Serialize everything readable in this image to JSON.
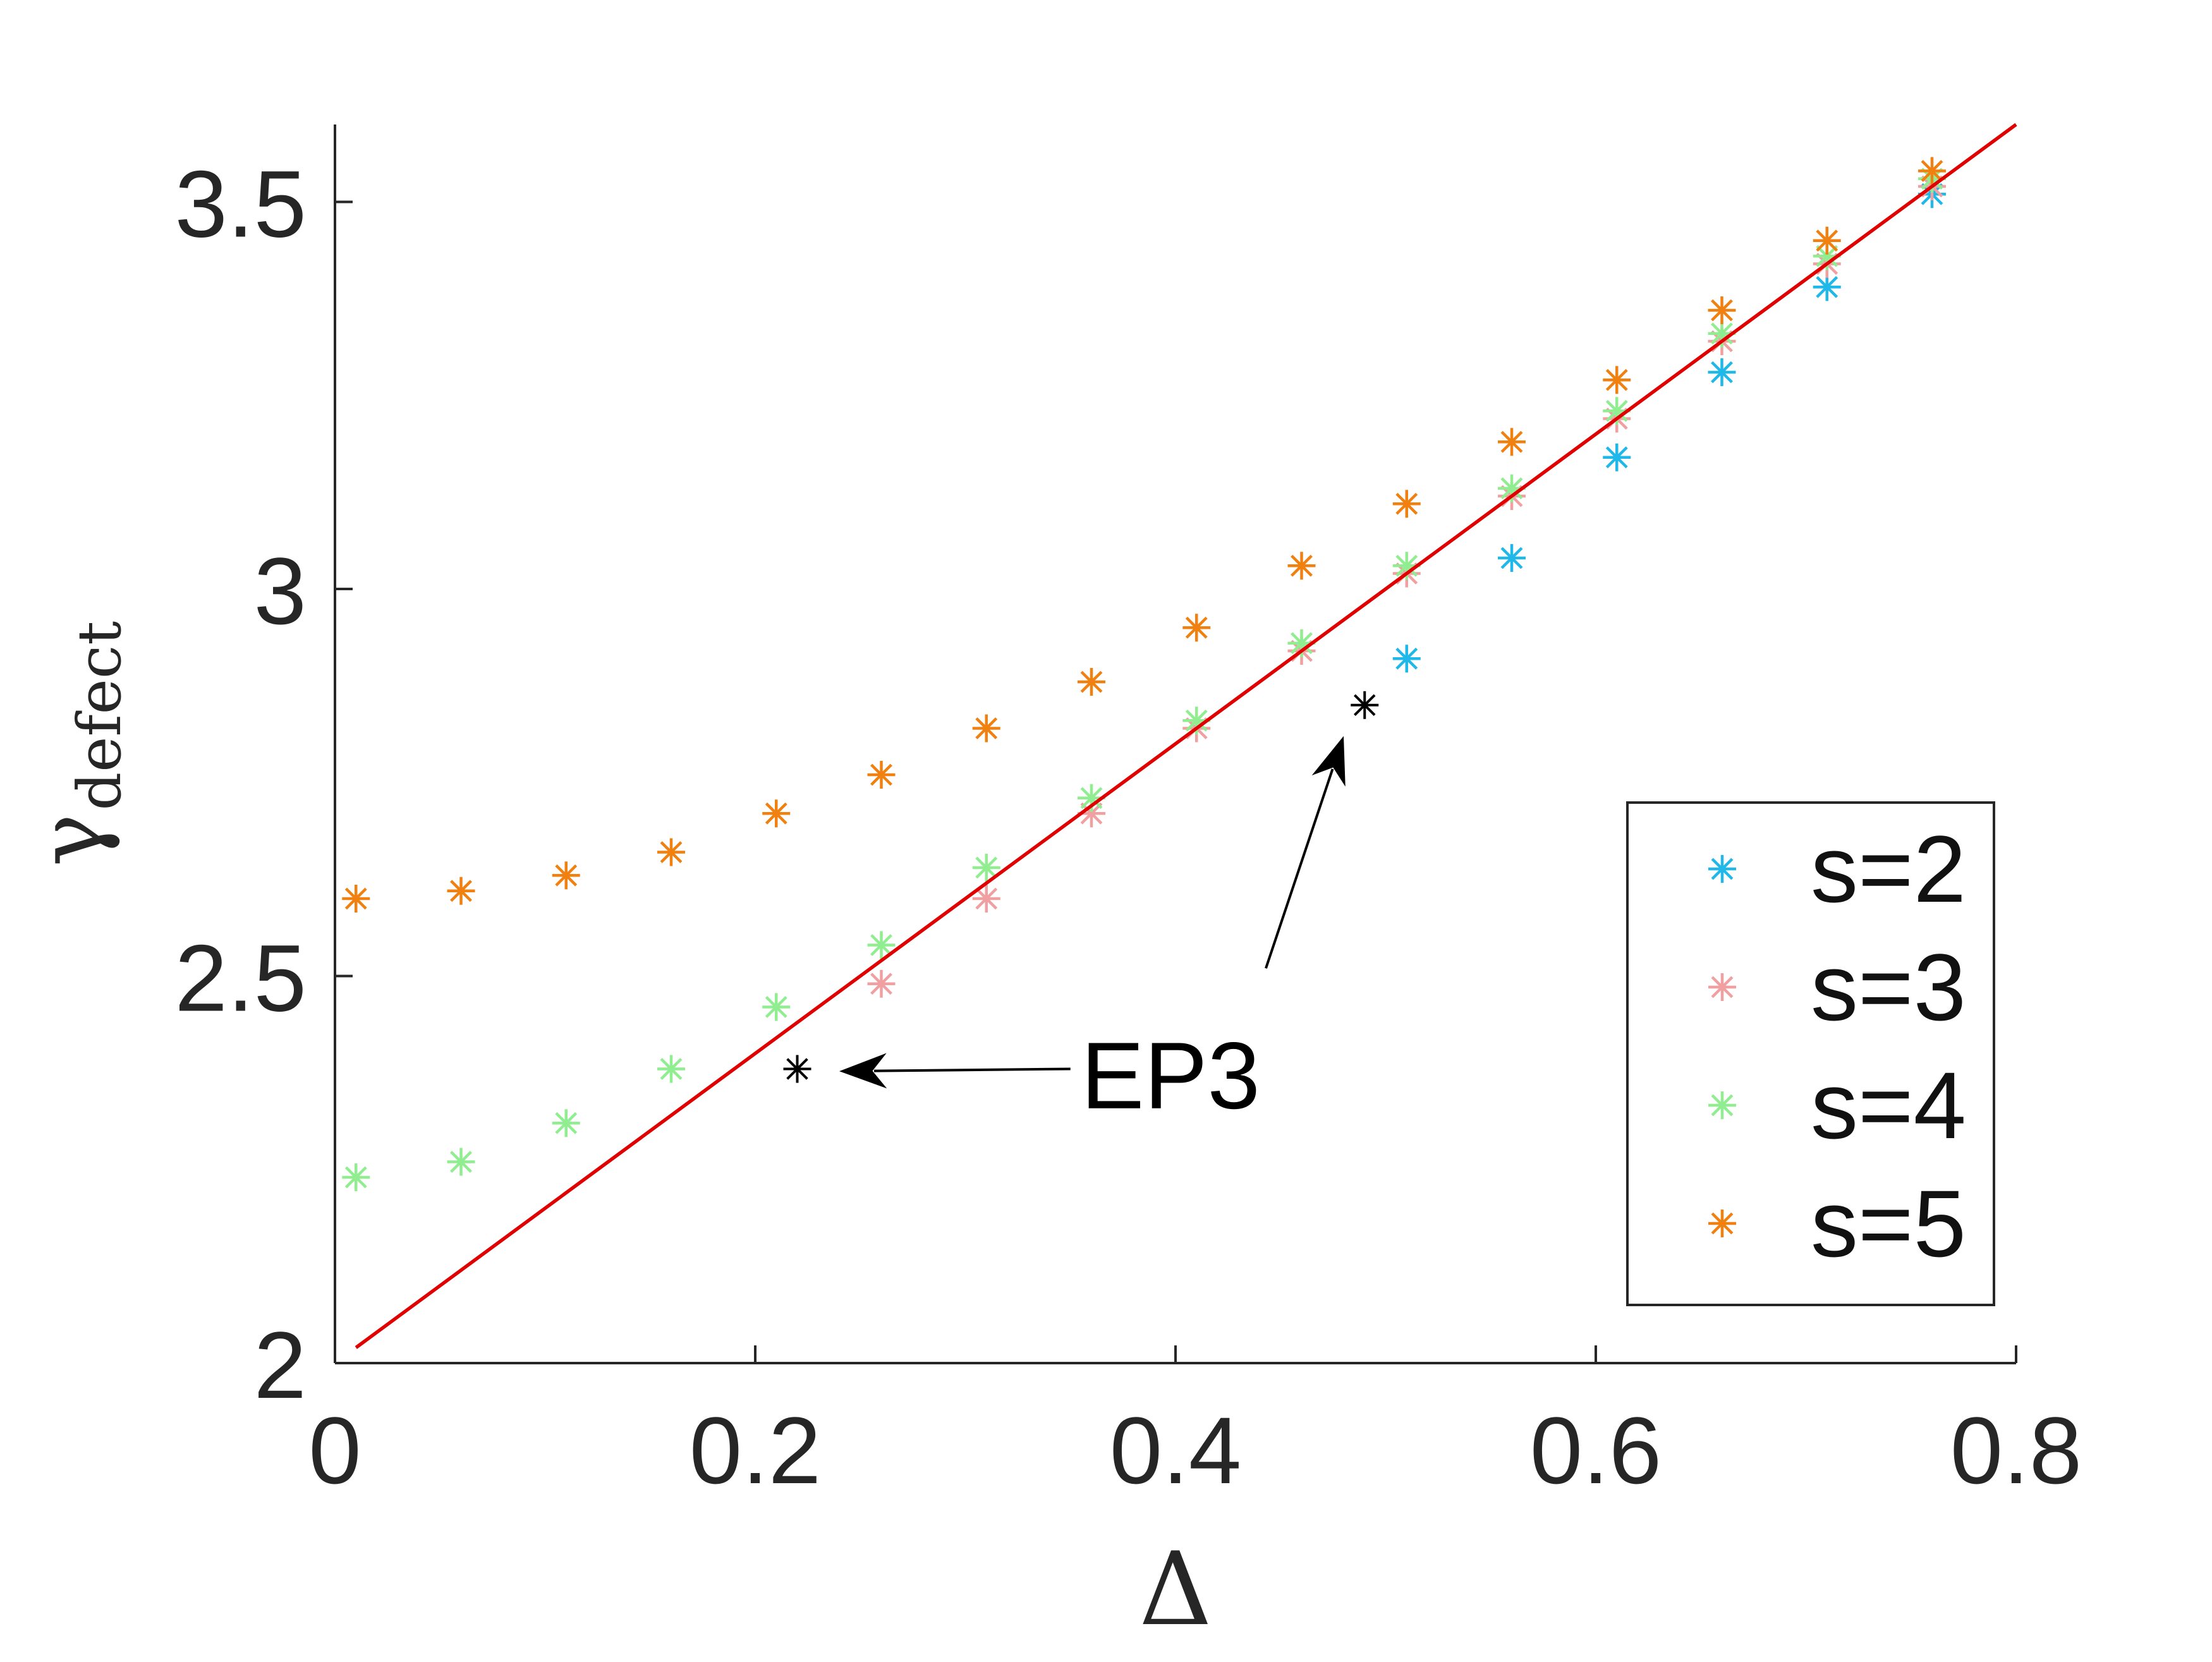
{
  "chart_data": {
    "type": "scatter",
    "xlabel": "Δ",
    "ylabel": {
      "main": "γ",
      "sub": "defect"
    },
    "xlim": [
      0,
      0.8
    ],
    "ylim": [
      2,
      3.6
    ],
    "xticks": [
      0,
      0.2,
      0.4,
      0.6,
      0.8
    ],
    "xtick_labels": [
      "0",
      "0.2",
      "0.4",
      "0.6",
      "0.8"
    ],
    "yticks": [
      2,
      2.5,
      3,
      3.5
    ],
    "ytick_labels": [
      "2",
      "2.5",
      "3",
      "3.5"
    ],
    "grid": false,
    "legend_position": "bottom-right",
    "series": [
      {
        "name": "s=2",
        "color": "#1fb8e8",
        "marker": "asterisk",
        "points": [
          [
            0.51,
            2.91
          ],
          [
            0.56,
            3.04
          ],
          [
            0.61,
            3.17
          ],
          [
            0.66,
            3.28
          ],
          [
            0.71,
            3.39
          ],
          [
            0.76,
            3.51
          ]
        ]
      },
      {
        "name": "s=3",
        "color": "#f0a0a0",
        "marker": "asterisk",
        "points": [
          [
            0.26,
            2.49
          ],
          [
            0.31,
            2.6
          ],
          [
            0.36,
            2.71
          ],
          [
            0.41,
            2.82
          ],
          [
            0.46,
            2.92
          ],
          [
            0.51,
            3.02
          ],
          [
            0.56,
            3.12
          ],
          [
            0.61,
            3.22
          ],
          [
            0.66,
            3.32
          ],
          [
            0.71,
            3.42
          ],
          [
            0.76,
            3.52
          ]
        ]
      },
      {
        "name": "s=4",
        "color": "#90ee90",
        "marker": "asterisk",
        "points": [
          [
            0.01,
            2.24
          ],
          [
            0.06,
            2.26
          ],
          [
            0.11,
            2.31
          ],
          [
            0.16,
            2.38
          ],
          [
            0.21,
            2.46
          ],
          [
            0.26,
            2.54
          ],
          [
            0.31,
            2.64
          ],
          [
            0.36,
            2.73
          ],
          [
            0.41,
            2.83
          ],
          [
            0.46,
            2.93
          ],
          [
            0.51,
            3.03
          ],
          [
            0.56,
            3.13
          ],
          [
            0.61,
            3.23
          ],
          [
            0.66,
            3.33
          ],
          [
            0.71,
            3.43
          ],
          [
            0.76,
            3.53
          ]
        ]
      },
      {
        "name": "s=5",
        "color": "#f08010",
        "marker": "asterisk",
        "points": [
          [
            0.01,
            2.6
          ],
          [
            0.06,
            2.61
          ],
          [
            0.11,
            2.63
          ],
          [
            0.16,
            2.66
          ],
          [
            0.21,
            2.71
          ],
          [
            0.26,
            2.76
          ],
          [
            0.31,
            2.82
          ],
          [
            0.36,
            2.88
          ],
          [
            0.41,
            2.95
          ],
          [
            0.46,
            3.03
          ],
          [
            0.51,
            3.11
          ],
          [
            0.56,
            3.19
          ],
          [
            0.61,
            3.27
          ],
          [
            0.66,
            3.36
          ],
          [
            0.71,
            3.45
          ],
          [
            0.76,
            3.54
          ]
        ]
      }
    ],
    "line": {
      "color": "#e00000",
      "points": [
        [
          0.01,
          2.02
        ],
        [
          0.8,
          3.6
        ]
      ]
    },
    "ep3_points": {
      "color": "#000000",
      "points": [
        [
          0.22,
          2.38
        ],
        [
          0.49,
          2.85
        ]
      ]
    },
    "annotation": {
      "text": "EP3",
      "color": "#000000",
      "anchor": [
        0.355,
        2.37
      ],
      "arrows": [
        {
          "from": [
            0.35,
            2.38
          ],
          "to": [
            0.24,
            2.377
          ]
        },
        {
          "from": [
            0.443,
            2.51
          ],
          "to": [
            0.48,
            2.81
          ]
        }
      ]
    },
    "axis_color": "#262626"
  }
}
